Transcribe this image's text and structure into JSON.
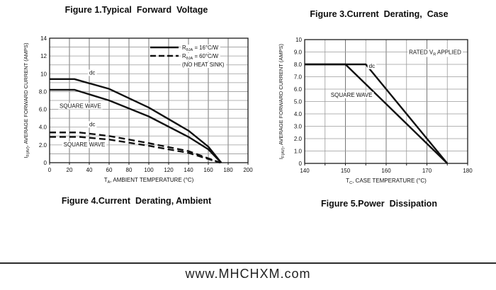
{
  "page": {
    "background": "#ffffff",
    "footer_url": "www.MHCHXM.com"
  },
  "colors": {
    "grid": "#9a9a9a",
    "grid_major": "#777777",
    "frame": "#1a1a1a",
    "curve": "#111111",
    "text": "#111111",
    "annotation_bg": "#ffffff"
  },
  "figures": [
    {
      "title_top": "Figure 1.Typical  Forward  Voltage",
      "caption_bottom": "Figure 4.Current  Derating, Ambient"
    },
    {
      "title_top": "Figure 3.Current  Derating,  Case",
      "caption_bottom": "Figure 5.Power  Dissipation"
    }
  ],
  "chart_data": [
    {
      "type": "line",
      "title": "Figure 4. Current Derating, Ambient",
      "grid": true,
      "x_axis": {
        "min": 0,
        "max": 200,
        "grid_step": 20,
        "major_every": 20,
        "ticks": [
          {
            "v": 0,
            "t": "0"
          },
          {
            "v": 20,
            "t": "20"
          },
          {
            "v": 40,
            "t": "40"
          },
          {
            "v": 60,
            "t": "60"
          },
          {
            "v": 80,
            "t": "80"
          },
          {
            "v": 100,
            "t": "100"
          },
          {
            "v": 120,
            "t": "120"
          },
          {
            "v": 140,
            "t": "140"
          },
          {
            "v": 160,
            "t": "160"
          },
          {
            "v": 180,
            "t": "180"
          },
          {
            "v": 200,
            "t": "200"
          }
        ],
        "label_parts": [
          {
            "t": "T"
          },
          {
            "t": "A",
            "sub": true
          },
          {
            "t": ", AMBIENT TEMPERATURE (°C)"
          }
        ]
      },
      "y_axis": {
        "min": 0,
        "max": 14,
        "grid_step": 1,
        "ticks": [
          {
            "v": 0,
            "t": "0"
          },
          {
            "v": 2,
            "t": "2.0"
          },
          {
            "v": 4,
            "t": "4.0"
          },
          {
            "v": 6,
            "t": "6.0"
          },
          {
            "v": 8,
            "t": "8.0"
          },
          {
            "v": 10,
            "t": "10"
          },
          {
            "v": 12,
            "t": "12"
          },
          {
            "v": 14,
            "t": "14"
          }
        ],
        "label_parts": [
          {
            "t": "I"
          },
          {
            "t": "F(AV)",
            "sub": true
          },
          {
            "t": ", AVERAGE FORWARD CURRENT (AMPS)"
          }
        ]
      },
      "series": [
        {
          "id": "dc-rtheta16",
          "label": "dc, RθJA = 16°C/W",
          "dash": false,
          "points": [
            [
              0,
              9.4
            ],
            [
              25,
              9.4
            ],
            [
              60,
              8.3
            ],
            [
              100,
              6.2
            ],
            [
              140,
              3.6
            ],
            [
              160,
              1.8
            ],
            [
              173,
              0
            ]
          ]
        },
        {
          "id": "square-wave-rtheta16",
          "label": "square wave, RθJA = 16°C/W",
          "dash": false,
          "points": [
            [
              0,
              8.2
            ],
            [
              25,
              8.2
            ],
            [
              60,
              7.0
            ],
            [
              100,
              5.2
            ],
            [
              140,
              2.9
            ],
            [
              160,
              1.5
            ],
            [
              173,
              0
            ]
          ]
        },
        {
          "id": "dc-rtheta60",
          "label": "dc, RθJA = 60°C/W (no heat sink)",
          "dash": true,
          "points": [
            [
              0,
              3.4
            ],
            [
              30,
              3.4
            ],
            [
              60,
              3.0
            ],
            [
              100,
              2.2
            ],
            [
              140,
              1.3
            ],
            [
              172,
              0
            ]
          ]
        },
        {
          "id": "square-wave-rtheta60",
          "label": "square wave, RθJA = 60°C/W (no heat sink)",
          "dash": true,
          "points": [
            [
              0,
              2.9
            ],
            [
              30,
              2.9
            ],
            [
              60,
              2.6
            ],
            [
              100,
              1.9
            ],
            [
              140,
              1.1
            ],
            [
              172,
              0
            ]
          ]
        }
      ],
      "annotations": [
        {
          "id": "dc-upper",
          "x": 43,
          "y": 10.15,
          "parts": [
            {
              "t": "dc"
            }
          ]
        },
        {
          "id": "square-wave-upper",
          "x": 31,
          "y": 6.4,
          "parts": [
            {
              "t": "SQUARE WAVE"
            }
          ]
        },
        {
          "id": "dc-lower",
          "x": 43,
          "y": 4.35,
          "parts": [
            {
              "t": "dc"
            }
          ]
        },
        {
          "id": "square-wave-lower",
          "x": 35,
          "y": 2.05,
          "parts": [
            {
              "t": "SQUARE WAVE"
            }
          ]
        }
      ],
      "legend": {
        "items": [
          {
            "dash": false,
            "parts": [
              {
                "t": "R"
              },
              {
                "t": "θJA",
                "sub": true
              },
              {
                "t": " = 16°C/W"
              }
            ]
          },
          {
            "dash": true,
            "parts": [
              {
                "t": "R"
              },
              {
                "t": "θJA",
                "sub": true
              },
              {
                "t": " = 60°C/W"
              }
            ]
          },
          {
            "parts": [
              {
                "t": "(NO HEAT SINK)"
              }
            ]
          }
        ]
      }
    },
    {
      "type": "line",
      "title": "Figure 3. Current Derating, Case",
      "grid": true,
      "x_axis": {
        "min": 140,
        "max": 180,
        "grid_step": 5,
        "major_every": 10,
        "ticks": [
          {
            "v": 140,
            "t": "140"
          },
          {
            "v": 150,
            "t": "150"
          },
          {
            "v": 160,
            "t": "160"
          },
          {
            "v": 170,
            "t": "170"
          },
          {
            "v": 180,
            "t": "180"
          }
        ],
        "label_parts": [
          {
            "t": "T"
          },
          {
            "t": "C",
            "sub": true
          },
          {
            "t": ", CASE TEMPERATURE (°C)"
          }
        ]
      },
      "y_axis": {
        "min": 0,
        "max": 10,
        "grid_step": 1,
        "ticks": [
          {
            "v": 0,
            "t": "0"
          },
          {
            "v": 1,
            "t": "1.0"
          },
          {
            "v": 2,
            "t": "2.0"
          },
          {
            "v": 3,
            "t": "3.0"
          },
          {
            "v": 4,
            "t": "4.0"
          },
          {
            "v": 5,
            "t": "5.0"
          },
          {
            "v": 6,
            "t": "6.0"
          },
          {
            "v": 7,
            "t": "7.0"
          },
          {
            "v": 8,
            "t": "8.0"
          },
          {
            "v": 9,
            "t": "9.0"
          },
          {
            "v": 10,
            "t": "10"
          }
        ],
        "label_parts": [
          {
            "t": "I"
          },
          {
            "t": "F(AV)",
            "sub": true
          },
          {
            "t": ", AVERAGE FORWARD CURRENT (AMPS)"
          }
        ]
      },
      "series": [
        {
          "id": "dc",
          "label": "dc",
          "dash": false,
          "points": [
            [
              140,
              8.0
            ],
            [
              155,
              8.0
            ],
            [
              175,
              0
            ]
          ]
        },
        {
          "id": "square-wave",
          "label": "square wave",
          "dash": false,
          "points": [
            [
              140,
              8.0
            ],
            [
              150,
              8.0
            ],
            [
              175,
              0
            ]
          ]
        }
      ],
      "annotations": [
        {
          "id": "rated-vr-applied",
          "x": 172,
          "y": 9.0,
          "parts": [
            {
              "t": "RATED V"
            },
            {
              "t": "R",
              "sub": true
            },
            {
              "t": " APPLIED"
            }
          ]
        },
        {
          "id": "dc-label",
          "x": 156.5,
          "y": 7.9,
          "parts": [
            {
              "t": "dc"
            }
          ]
        },
        {
          "id": "square-wave-label",
          "x": 151.5,
          "y": 5.55,
          "parts": [
            {
              "t": "SQUARE WAVE"
            }
          ]
        }
      ]
    }
  ]
}
